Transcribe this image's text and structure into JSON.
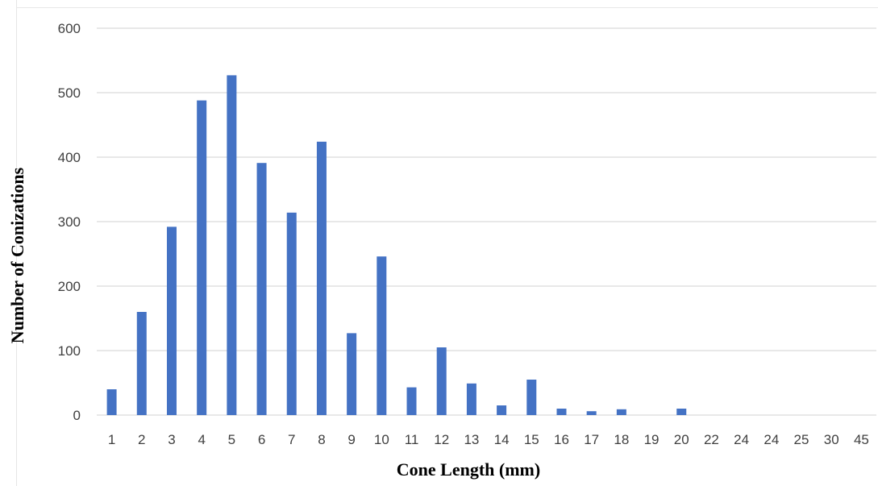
{
  "chart_data": {
    "type": "bar",
    "title": "",
    "xlabel": "Cone Length (mm)",
    "ylabel": "Number of Conizations",
    "categories": [
      "1",
      "2",
      "3",
      "4",
      "5",
      "6",
      "7",
      "8",
      "9",
      "10",
      "11",
      "12",
      "13",
      "14",
      "15",
      "16",
      "17",
      "18",
      "19",
      "20",
      "22",
      "24",
      "24",
      "25",
      "30",
      "45"
    ],
    "series": [
      {
        "values": [
          40,
          160,
          292,
          488,
          527,
          391,
          314,
          424,
          127,
          246,
          43,
          105,
          49,
          15,
          55,
          10,
          6,
          9,
          0,
          10,
          0,
          0,
          0,
          0,
          0,
          0
        ]
      }
    ],
    "ylim": [
      0,
      600
    ],
    "yticks": [
      0,
      100,
      200,
      300,
      400,
      500,
      600
    ],
    "grid": true,
    "legend": "none",
    "colors": {
      "bar": "#4472C4",
      "grid": "#d9d9d9",
      "tick_text": "#404040"
    }
  }
}
